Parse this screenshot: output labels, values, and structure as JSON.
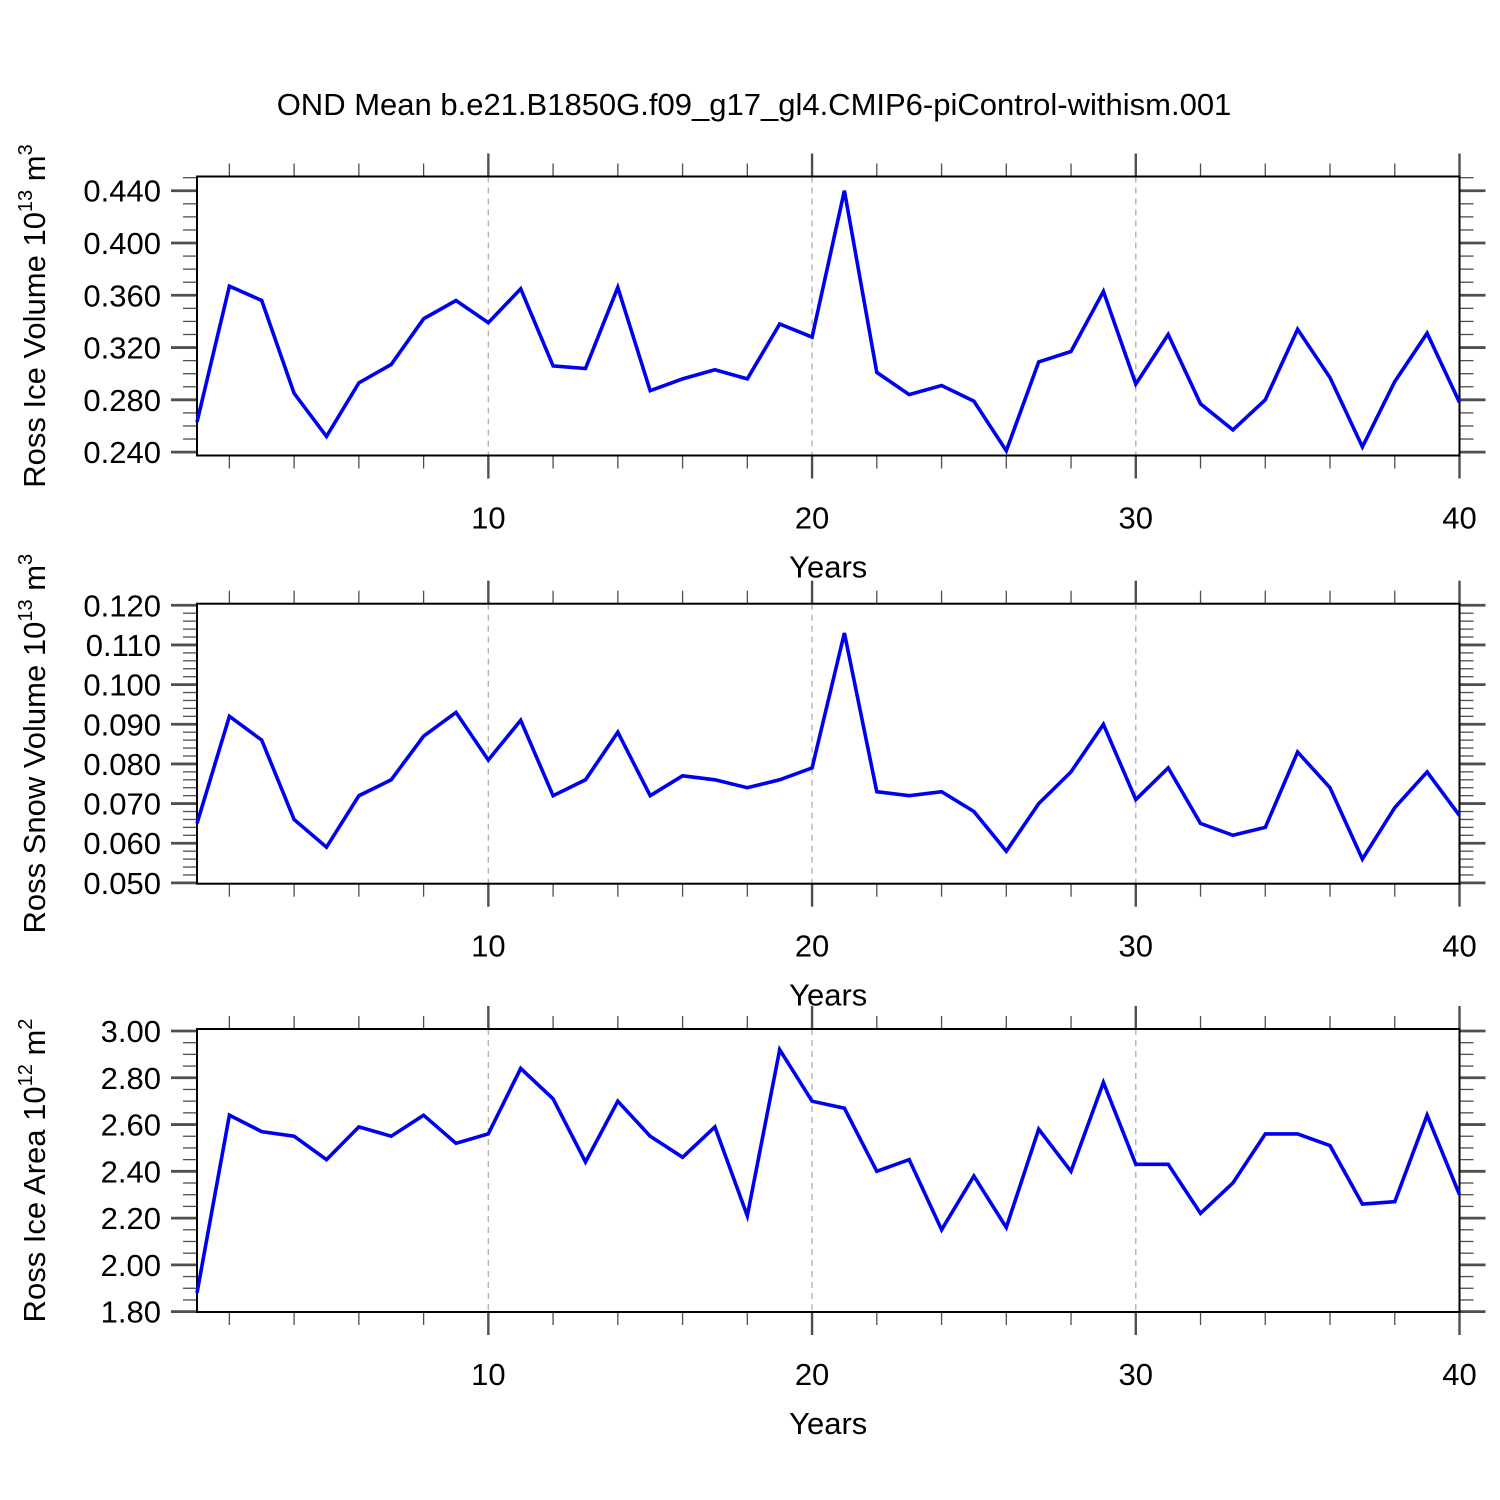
{
  "title": "OND Mean b.e21.B1850G.f09_g17_gl4.CMIP6-piControl-withism.001",
  "colors": {
    "line": "#0000f0",
    "grid": "#b3b3b3",
    "tick": "#4f4f4f",
    "frame": "#000000"
  },
  "chart_data": [
    {
      "type": "line",
      "name": "ross-ice-volume",
      "ylabel_segments": [
        {
          "t": "Ross Ice Volume 10"
        },
        {
          "t": "13",
          "sup": true
        },
        {
          "t": " m"
        },
        {
          "t": "3",
          "sup": true
        }
      ],
      "xlabel": "Years",
      "x_start": 1,
      "x_step": 1,
      "values": [
        0.263,
        0.367,
        0.356,
        0.285,
        0.252,
        0.293,
        0.307,
        0.342,
        0.356,
        0.339,
        0.365,
        0.306,
        0.304,
        0.366,
        0.287,
        0.296,
        0.303,
        0.296,
        0.338,
        0.328,
        0.44,
        0.301,
        0.284,
        0.291,
        0.279,
        0.241,
        0.309,
        0.317,
        0.363,
        0.292,
        0.33,
        0.277,
        0.257,
        0.28,
        0.334,
        0.297,
        0.244,
        0.294,
        0.331,
        0.278
      ],
      "xlim": [
        1,
        40
      ],
      "ylim": [
        0.2374,
        0.4509
      ],
      "yticks_major": [
        0.24,
        0.28,
        0.32,
        0.36,
        0.4,
        0.44
      ],
      "ytick_labels": [
        "0.240",
        "0.280",
        "0.320",
        "0.360",
        "0.400",
        "0.440"
      ],
      "yminor_step": 0.01,
      "xticks_labeled": [
        10,
        20,
        30,
        40
      ],
      "xtick_labels": [
        "10",
        "20",
        "30",
        "40"
      ],
      "xminor_step": 2,
      "gridlines_x": [
        10,
        20,
        30
      ],
      "grid": "dashed-vertical",
      "legend": "none"
    },
    {
      "type": "line",
      "name": "ross-snow-volume",
      "ylabel_segments": [
        {
          "t": "Ross Snow Volume 10"
        },
        {
          "t": "13",
          "sup": true
        },
        {
          "t": " m"
        },
        {
          "t": "3",
          "sup": true
        }
      ],
      "xlabel": "Years",
      "x_start": 1,
      "x_step": 1,
      "values": [
        0.065,
        0.092,
        0.086,
        0.066,
        0.059,
        0.072,
        0.076,
        0.087,
        0.093,
        0.081,
        0.091,
        0.072,
        0.076,
        0.088,
        0.072,
        0.077,
        0.076,
        0.074,
        0.076,
        0.079,
        0.113,
        0.073,
        0.072,
        0.073,
        0.068,
        0.058,
        0.07,
        0.078,
        0.09,
        0.071,
        0.079,
        0.065,
        0.062,
        0.064,
        0.083,
        0.074,
        0.056,
        0.069,
        0.078,
        0.067
      ],
      "xlim": [
        1,
        40
      ],
      "ylim": [
        0.0498,
        0.1204
      ],
      "yticks_major": [
        0.05,
        0.06,
        0.07,
        0.08,
        0.09,
        0.1,
        0.11,
        0.12
      ],
      "ytick_labels": [
        "0.050",
        "0.060",
        "0.070",
        "0.080",
        "0.090",
        "0.100",
        "0.110",
        "0.120"
      ],
      "yminor_step": 0.002,
      "xticks_labeled": [
        10,
        20,
        30,
        40
      ],
      "xtick_labels": [
        "10",
        "20",
        "30",
        "40"
      ],
      "xminor_step": 2,
      "gridlines_x": [
        10,
        20,
        30
      ],
      "grid": "dashed-vertical",
      "legend": "none"
    },
    {
      "type": "line",
      "name": "ross-ice-area",
      "ylabel_segments": [
        {
          "t": "Ross Ice Area 10"
        },
        {
          "t": "12",
          "sup": true
        },
        {
          "t": " m"
        },
        {
          "t": "2",
          "sup": true
        }
      ],
      "xlabel": "Years",
      "x_start": 1,
      "x_step": 1,
      "values": [
        1.88,
        2.64,
        2.57,
        2.55,
        2.45,
        2.59,
        2.55,
        2.64,
        2.52,
        2.56,
        2.84,
        2.71,
        2.44,
        2.7,
        2.55,
        2.46,
        2.59,
        2.21,
        2.92,
        2.7,
        2.67,
        2.4,
        2.45,
        2.15,
        2.38,
        2.16,
        2.58,
        2.4,
        2.78,
        2.43,
        2.43,
        2.22,
        2.35,
        2.56,
        2.56,
        2.51,
        2.26,
        2.27,
        2.64,
        2.3
      ],
      "xlim": [
        1,
        40
      ],
      "ylim": [
        1.7985,
        3.0085
      ],
      "yticks_major": [
        1.8,
        2.0,
        2.2,
        2.4,
        2.6,
        2.8,
        3.0
      ],
      "ytick_labels": [
        "1.80",
        "2.00",
        "2.20",
        "2.40",
        "2.60",
        "2.80",
        "3.00"
      ],
      "yminor_step": 0.05,
      "xticks_labeled": [
        10,
        20,
        30,
        40
      ],
      "xtick_labels": [
        "10",
        "20",
        "30",
        "40"
      ],
      "xminor_step": 2,
      "gridlines_x": [
        10,
        20,
        30
      ],
      "grid": "dashed-vertical",
      "legend": "none"
    }
  ]
}
